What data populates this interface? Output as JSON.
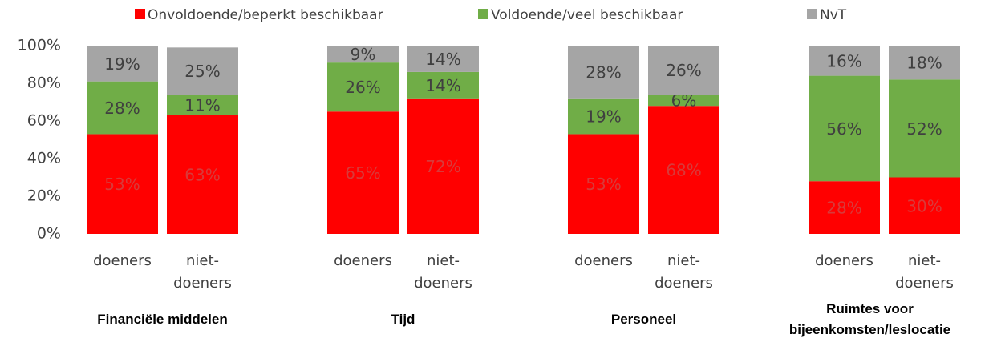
{
  "chart_data": {
    "type": "stacked_bar",
    "categories": [
      "doeners",
      "niet-doeners",
      "doeners",
      "niet-doeners",
      "doeners",
      "niet-doeners",
      "doeners",
      "niet-doeners"
    ],
    "groups": [
      "Financiële middelen",
      "Tijd",
      "Personeel",
      "Ruimtes voor bijeenkomsten/leslocatie"
    ],
    "series": [
      {
        "name": "Onvoldoende/beperkt beschikbaar",
        "color": "#ff0000",
        "values": [
          53,
          63,
          65,
          72,
          53,
          68,
          28,
          30
        ],
        "value_labels": [
          "53%",
          "63%",
          "65%",
          "72%",
          "53%",
          "68%",
          "28%",
          "30%"
        ]
      },
      {
        "name": "Voldoende/veel beschikbaar",
        "color": "#70ad47",
        "values": [
          28,
          11,
          26,
          14,
          19,
          6,
          56,
          52
        ],
        "value_labels": [
          "28%",
          "11%",
          "26%",
          "14%",
          "19%",
          "6%",
          "56%",
          "52%"
        ]
      },
      {
        "name": "NvT",
        "color": "#a5a5a5",
        "values": [
          19,
          25,
          9,
          14,
          28,
          26,
          16,
          18
        ],
        "value_labels": [
          "19%",
          "25%",
          "9%",
          "14%",
          "28%",
          "26%",
          "16%",
          "18%"
        ]
      }
    ],
    "ylim": [
      0,
      100
    ],
    "yticks": [
      {
        "value": 0,
        "label": "0%"
      },
      {
        "value": 20,
        "label": "20%"
      },
      {
        "value": 40,
        "label": "40%"
      },
      {
        "value": 60,
        "label": "60%"
      },
      {
        "value": 80,
        "label": "80%"
      },
      {
        "value": 100,
        "label": "100%"
      }
    ],
    "grid": false,
    "legend": "top"
  }
}
